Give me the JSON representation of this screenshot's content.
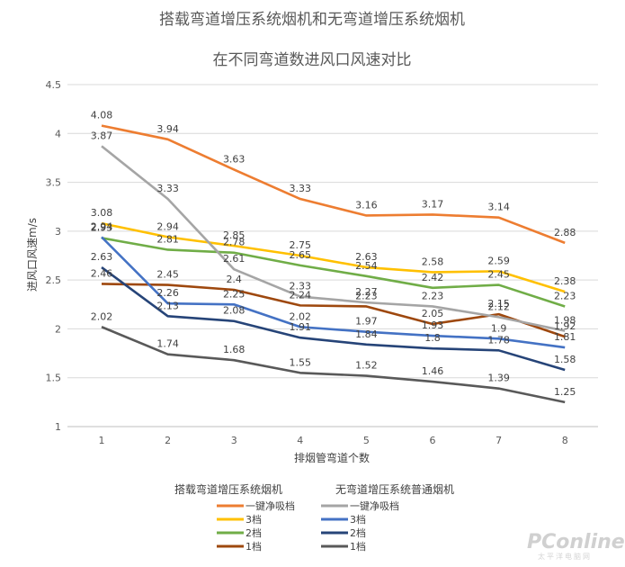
{
  "chart_data": {
    "type": "line",
    "title_line1": "搭载弯道增压系统烟机和无弯道增压系统烟机",
    "title_line2": "在不同弯道数进风口风速对比",
    "xlabel": "排烟管弯道个数",
    "ylabel": "进风口风速m/s",
    "x": [
      1,
      2,
      3,
      4,
      5,
      6,
      7,
      8
    ],
    "ylim": [
      1,
      4.5
    ],
    "yticks": [
      "1",
      "1.5",
      "2",
      "2.5",
      "3",
      "3.5",
      "4",
      "4.5"
    ],
    "grid": true,
    "legend_group_titles": [
      "搭载弯道增压系统烟机",
      "无弯道增压系统普通烟机"
    ],
    "series": [
      {
        "name": "一键净吸档",
        "group": 0,
        "color": "#ED7D31",
        "values": [
          4.08,
          3.94,
          3.63,
          3.33,
          3.16,
          3.17,
          3.14,
          2.88
        ]
      },
      {
        "name": "3档",
        "group": 0,
        "color": "#FFC000",
        "values": [
          3.08,
          2.94,
          2.85,
          2.75,
          2.63,
          2.58,
          2.59,
          2.38
        ]
      },
      {
        "name": "2档",
        "group": 0,
        "color": "#70AD47",
        "values": [
          2.93,
          2.81,
          2.78,
          2.65,
          2.54,
          2.42,
          2.45,
          2.23
        ]
      },
      {
        "name": "1档",
        "group": 0,
        "color": "#9E480E",
        "values": [
          2.46,
          2.45,
          2.4,
          2.24,
          2.23,
          2.05,
          2.15,
          1.92
        ]
      },
      {
        "name": "一键净吸档",
        "group": 1,
        "color": "#A5A5A5",
        "values": [
          3.87,
          3.33,
          2.61,
          2.33,
          2.27,
          2.23,
          2.12,
          1.98
        ]
      },
      {
        "name": "3档",
        "group": 1,
        "color": "#4472C4",
        "values": [
          2.94,
          2.26,
          2.25,
          2.02,
          1.97,
          1.93,
          1.9,
          1.81
        ]
      },
      {
        "name": "2档",
        "group": 1,
        "color": "#264478",
        "values": [
          2.63,
          2.13,
          2.08,
          1.91,
          1.84,
          1.8,
          1.78,
          1.58
        ]
      },
      {
        "name": "1档",
        "group": 1,
        "color": "#595959",
        "values": [
          2.02,
          1.74,
          1.68,
          1.55,
          1.52,
          1.46,
          1.39,
          1.25
        ]
      }
    ]
  },
  "watermark": {
    "brand": "PConline",
    "sub": "太平洋电脑网"
  }
}
